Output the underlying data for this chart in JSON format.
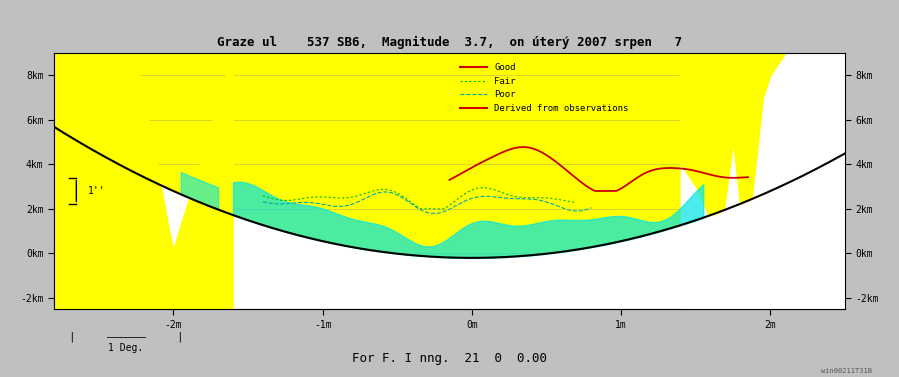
{
  "title": "Graze ul    537 SB6,  Magnitude  3.7,  on úterý 2007 srpen   7",
  "subtitle": "For F. I nng.  21  0  0.00",
  "scalebar_label": "1 Deg.",
  "watermark": "win00211T31B",
  "background_color": "#c0c0c0",
  "plot_bg_color": "#ffffff",
  "yellow_color": "#ffff00",
  "cyan_color": "#00e5e5",
  "ylim": [
    -2500,
    9000
  ],
  "xlim": [
    -2.8,
    2.5
  ],
  "ytick_pos": [
    0,
    2000,
    4000,
    6000,
    8000
  ],
  "ytick_neg": [
    -2000
  ],
  "ytick_labels": [
    "0km",
    "2km",
    "4km",
    "6km",
    "8km"
  ],
  "ytick_neg_labels": [
    "-2km"
  ],
  "xtick_pos": [
    -2.0,
    -1.0,
    0.0,
    1.0,
    2.0
  ],
  "xtick_labels": [
    "-2m",
    "-1m",
    "0m",
    "1m",
    "2m"
  ],
  "font_color": "#000000",
  "title_color": "#000000",
  "good_color": "#cc0000",
  "fair_color": "#00bb00",
  "poor_color": "#00aaaa",
  "derived_color": "#cc0000",
  "legend_labels": [
    "Good",
    "Fair",
    "Poor",
    "Derived from observations"
  ],
  "parabola_a": 750,
  "parabola_b": -200
}
